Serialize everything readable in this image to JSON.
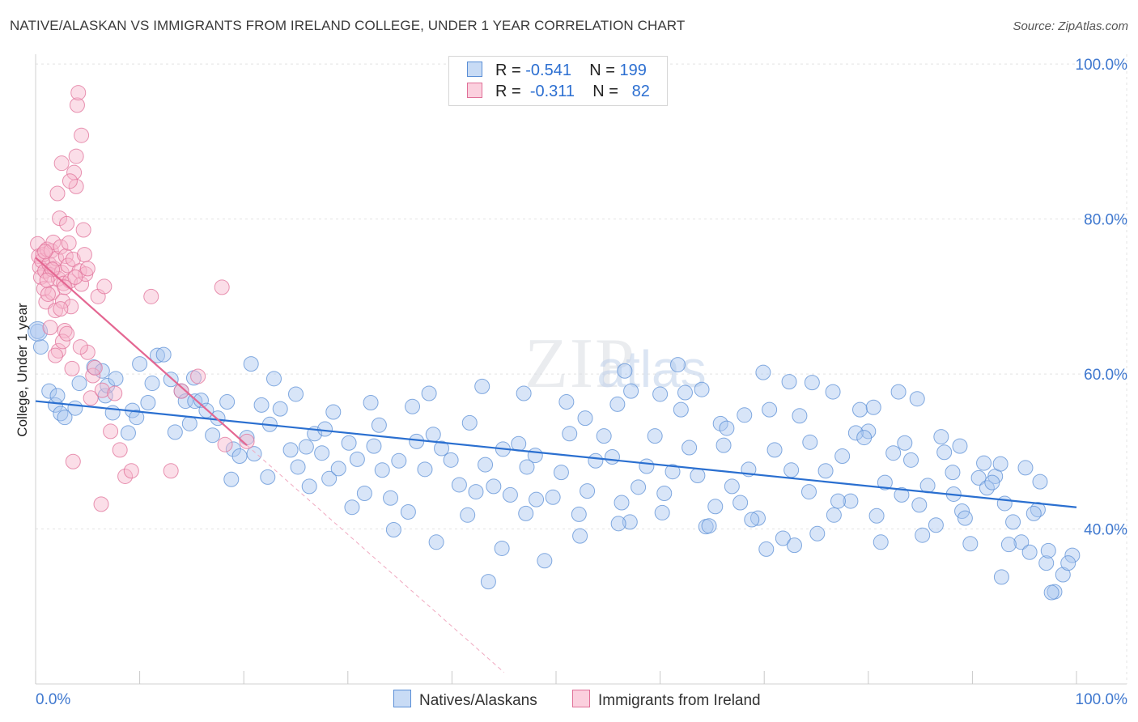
{
  "title": "NATIVE/ALASKAN VS IMMIGRANTS FROM IRELAND COLLEGE, UNDER 1 YEAR CORRELATION CHART",
  "source": "Source: ZipAtlas.com",
  "watermark": "ZIPatlas",
  "legend": {
    "rows": [
      {
        "r_label": "R =",
        "r_value": "-0.541",
        "n_label": "N =",
        "n_value": "199",
        "color": "#a9c6ef",
        "border": "#5b8fd6"
      },
      {
        "r_label": "R =",
        "r_value": "-0.311",
        "n_label": "N =",
        "n_value": "82",
        "color": "#f7b6cb",
        "border": "#e07098"
      }
    ]
  },
  "bottom_legend": [
    {
      "label": "Natives/Alaskans",
      "color": "#a9c6ef",
      "border": "#5b8fd6"
    },
    {
      "label": "Immigrants from Ireland",
      "color": "#f7b6cb",
      "border": "#e07098"
    }
  ],
  "chart_data": {
    "type": "scatter",
    "title": "NATIVE/ALASKAN VS IMMIGRANTS FROM IRELAND COLLEGE, UNDER 1 YEAR CORRELATION CHART",
    "xlabel": "",
    "ylabel": "College, Under 1 year",
    "xlim": [
      0,
      100
    ],
    "ylim": [
      20,
      102
    ],
    "x_tick_labels": [
      "0.0%",
      "100.0%"
    ],
    "y_ticks": [
      40,
      60,
      80,
      100
    ],
    "y_tick_labels": [
      "40.0%",
      "60.0%",
      "80.0%",
      "100.0%"
    ],
    "grid": true,
    "series": [
      {
        "name": "Natives/Alaskans",
        "color": "#a9c6ef",
        "border": "#5b8fd6",
        "trend": {
          "x0": 0,
          "y0": 56.5,
          "x1": 100,
          "y1": 42.8,
          "color": "#2a6fd0"
        },
        "points": [
          [
            0.2,
            65.5
          ],
          [
            0.5,
            63.5
          ],
          [
            1.3,
            57.8
          ],
          [
            1.9,
            56.0
          ],
          [
            2.4,
            54.9
          ],
          [
            2.8,
            54.4
          ],
          [
            3.8,
            55.6
          ],
          [
            4.2,
            58.8
          ],
          [
            5.6,
            60.9
          ],
          [
            6.4,
            60.4
          ],
          [
            6.7,
            57.2
          ],
          [
            6.9,
            58.5
          ],
          [
            7.4,
            55.0
          ],
          [
            7.7,
            59.4
          ],
          [
            8.9,
            52.4
          ],
          [
            9.3,
            55.3
          ],
          [
            9.7,
            54.4
          ],
          [
            10.8,
            56.3
          ],
          [
            11.2,
            58.8
          ],
          [
            11.7,
            62.4
          ],
          [
            12.3,
            62.5
          ],
          [
            13.0,
            59.3
          ],
          [
            13.4,
            52.5
          ],
          [
            14.0,
            57.8
          ],
          [
            14.4,
            56.5
          ],
          [
            14.8,
            53.6
          ],
          [
            15.3,
            56.5
          ],
          [
            15.9,
            56.6
          ],
          [
            16.4,
            55.3
          ],
          [
            17.0,
            52.1
          ],
          [
            17.5,
            54.3
          ],
          [
            18.4,
            56.4
          ],
          [
            19.0,
            50.3
          ],
          [
            19.6,
            49.4
          ],
          [
            20.3,
            51.8
          ],
          [
            21.0,
            49.7
          ],
          [
            21.7,
            56.0
          ],
          [
            22.5,
            53.5
          ],
          [
            23.5,
            55.5
          ],
          [
            24.5,
            50.2
          ],
          [
            25.2,
            48.0
          ],
          [
            26.0,
            50.6
          ],
          [
            26.8,
            52.3
          ],
          [
            27.5,
            49.8
          ],
          [
            28.2,
            46.5
          ],
          [
            29.1,
            47.8
          ],
          [
            30.1,
            51.1
          ],
          [
            30.9,
            49.0
          ],
          [
            31.6,
            44.6
          ],
          [
            32.5,
            50.7
          ],
          [
            33.3,
            47.6
          ],
          [
            34.1,
            44.0
          ],
          [
            34.9,
            48.8
          ],
          [
            35.8,
            42.2
          ],
          [
            36.6,
            51.3
          ],
          [
            37.4,
            47.7
          ],
          [
            38.2,
            52.2
          ],
          [
            39.0,
            50.4
          ],
          [
            39.9,
            48.9
          ],
          [
            40.7,
            45.7
          ],
          [
            41.5,
            41.8
          ],
          [
            42.3,
            44.8
          ],
          [
            43.2,
            48.3
          ],
          [
            44.0,
            45.5
          ],
          [
            44.8,
            37.5
          ],
          [
            45.6,
            44.4
          ],
          [
            46.4,
            51.0
          ],
          [
            47.2,
            48.0
          ],
          [
            48.1,
            43.8
          ],
          [
            48.9,
            35.9
          ],
          [
            49.7,
            44.1
          ],
          [
            50.5,
            47.3
          ],
          [
            51.3,
            52.3
          ],
          [
            52.2,
            41.9
          ],
          [
            53.0,
            44.9
          ],
          [
            53.8,
            48.8
          ],
          [
            54.6,
            52.0
          ],
          [
            55.4,
            49.3
          ],
          [
            56.3,
            43.4
          ],
          [
            57.1,
            40.9
          ],
          [
            57.9,
            45.4
          ],
          [
            58.7,
            48.1
          ],
          [
            59.5,
            52.0
          ],
          [
            60.4,
            44.6
          ],
          [
            61.2,
            47.4
          ],
          [
            62.0,
            55.4
          ],
          [
            62.8,
            50.5
          ],
          [
            63.6,
            46.9
          ],
          [
            64.4,
            40.3
          ],
          [
            65.3,
            42.9
          ],
          [
            66.1,
            50.8
          ],
          [
            66.9,
            45.5
          ],
          [
            67.7,
            43.4
          ],
          [
            68.5,
            47.7
          ],
          [
            69.4,
            41.4
          ],
          [
            70.2,
            37.4
          ],
          [
            71.0,
            50.2
          ],
          [
            71.8,
            38.8
          ],
          [
            72.6,
            47.6
          ],
          [
            73.4,
            54.6
          ],
          [
            74.3,
            44.8
          ],
          [
            75.1,
            39.4
          ],
          [
            75.9,
            47.5
          ],
          [
            76.7,
            41.8
          ],
          [
            77.5,
            49.4
          ],
          [
            78.3,
            43.6
          ],
          [
            79.2,
            55.4
          ],
          [
            80.0,
            52.6
          ],
          [
            80.8,
            41.7
          ],
          [
            81.6,
            46.0
          ],
          [
            82.4,
            49.8
          ],
          [
            83.2,
            44.4
          ],
          [
            84.1,
            48.9
          ],
          [
            84.9,
            43.1
          ],
          [
            85.7,
            45.6
          ],
          [
            86.5,
            40.5
          ],
          [
            87.3,
            49.9
          ],
          [
            88.2,
            44.5
          ],
          [
            89.0,
            42.3
          ],
          [
            89.8,
            38.1
          ],
          [
            90.6,
            46.6
          ],
          [
            91.4,
            45.3
          ],
          [
            92.2,
            46.8
          ],
          [
            93.1,
            43.3
          ],
          [
            93.9,
            40.9
          ],
          [
            94.7,
            38.3
          ],
          [
            95.5,
            37.0
          ],
          [
            96.3,
            42.5
          ],
          [
            97.1,
            35.6
          ],
          [
            97.9,
            31.9
          ],
          [
            98.7,
            34.1
          ],
          [
            99.6,
            36.6
          ],
          [
            2.1,
            57.2
          ],
          [
            10.0,
            61.3
          ],
          [
            15.2,
            59.5
          ],
          [
            20.7,
            61.3
          ],
          [
            25.0,
            57.4
          ],
          [
            28.6,
            55.1
          ],
          [
            33.0,
            53.4
          ],
          [
            36.2,
            55.8
          ],
          [
            41.7,
            53.7
          ],
          [
            44.9,
            50.3
          ],
          [
            48.0,
            49.5
          ],
          [
            52.8,
            54.3
          ],
          [
            55.9,
            56.1
          ],
          [
            60.0,
            57.4
          ],
          [
            64.0,
            58.0
          ],
          [
            68.1,
            54.7
          ],
          [
            72.4,
            59.0
          ],
          [
            76.6,
            57.7
          ],
          [
            80.5,
            55.7
          ],
          [
            84.7,
            56.8
          ],
          [
            88.8,
            50.7
          ],
          [
            92.7,
            48.4
          ],
          [
            96.5,
            46.1
          ],
          [
            22.9,
            59.4
          ],
          [
            27.8,
            52.9
          ],
          [
            32.2,
            56.3
          ],
          [
            37.8,
            57.5
          ],
          [
            42.9,
            58.4
          ],
          [
            46.9,
            57.5
          ],
          [
            51.0,
            56.4
          ],
          [
            56.6,
            60.4
          ],
          [
            61.7,
            61.2
          ],
          [
            65.8,
            53.6
          ],
          [
            69.9,
            60.2
          ],
          [
            74.6,
            58.9
          ],
          [
            78.8,
            52.4
          ],
          [
            82.9,
            57.7
          ],
          [
            87.0,
            51.9
          ],
          [
            91.1,
            48.5
          ],
          [
            95.1,
            47.9
          ],
          [
            57.2,
            57.8
          ],
          [
            62.4,
            57.6
          ],
          [
            66.4,
            53.0
          ],
          [
            70.5,
            55.4
          ],
          [
            74.4,
            51.2
          ],
          [
            79.6,
            51.8
          ],
          [
            83.5,
            51.1
          ],
          [
            88.1,
            47.3
          ],
          [
            91.9,
            46.0
          ],
          [
            95.9,
            42.0
          ],
          [
            18.8,
            46.4
          ],
          [
            22.3,
            46.7
          ],
          [
            26.3,
            45.5
          ],
          [
            30.4,
            42.8
          ],
          [
            34.4,
            39.9
          ],
          [
            38.5,
            38.3
          ],
          [
            43.5,
            33.2
          ],
          [
            47.1,
            42.0
          ],
          [
            52.3,
            39.1
          ],
          [
            56.0,
            40.7
          ],
          [
            60.2,
            42.1
          ],
          [
            64.7,
            40.4
          ],
          [
            68.8,
            41.2
          ],
          [
            72.9,
            37.9
          ],
          [
            77.1,
            43.6
          ],
          [
            81.2,
            38.3
          ],
          [
            85.2,
            39.2
          ],
          [
            89.3,
            41.4
          ],
          [
            93.5,
            38.0
          ],
          [
            97.3,
            37.2
          ],
          [
            92.8,
            33.8
          ],
          [
            97.6,
            31.8
          ],
          [
            99.2,
            35.6
          ]
        ]
      },
      {
        "name": "Immigrants from Ireland",
        "color": "#f7b6cb",
        "border": "#e07098",
        "trend": {
          "x0": 0,
          "y0": 75.0,
          "x1": 20.3,
          "y1": 50.8,
          "color": "#e46792",
          "dash_x1": 45.0,
          "dash_y1": 21.5
        },
        "points": [
          [
            0.2,
            76.8
          ],
          [
            0.3,
            75.2
          ],
          [
            0.4,
            73.8
          ],
          [
            0.5,
            72.5
          ],
          [
            0.6,
            74.6
          ],
          [
            0.7,
            75.4
          ],
          [
            0.8,
            71.0
          ],
          [
            0.9,
            73.3
          ],
          [
            1.0,
            69.3
          ],
          [
            1.1,
            76.1
          ],
          [
            1.3,
            74.2
          ],
          [
            1.4,
            72.8
          ],
          [
            1.5,
            75.9
          ],
          [
            1.6,
            70.5
          ],
          [
            1.7,
            77.0
          ],
          [
            1.8,
            73.6
          ],
          [
            1.9,
            68.2
          ],
          [
            2.0,
            74.9
          ],
          [
            2.2,
            72.3
          ],
          [
            2.3,
            80.1
          ],
          [
            2.4,
            76.4
          ],
          [
            2.5,
            73.1
          ],
          [
            2.6,
            69.4
          ],
          [
            2.7,
            71.7
          ],
          [
            2.8,
            65.6
          ],
          [
            2.9,
            75.2
          ],
          [
            3.0,
            79.4
          ],
          [
            3.1,
            74.0
          ],
          [
            3.2,
            76.9
          ],
          [
            3.3,
            72.0
          ],
          [
            3.4,
            68.7
          ],
          [
            3.6,
            74.8
          ],
          [
            3.7,
            86.0
          ],
          [
            3.9,
            84.2
          ],
          [
            4.0,
            94.7
          ],
          [
            4.1,
            96.3
          ],
          [
            4.2,
            73.3
          ],
          [
            4.4,
            71.6
          ],
          [
            4.6,
            78.6
          ],
          [
            4.8,
            72.9
          ],
          [
            5.0,
            62.8
          ],
          [
            5.3,
            56.9
          ],
          [
            5.5,
            59.8
          ],
          [
            5.7,
            60.8
          ],
          [
            6.0,
            70.0
          ],
          [
            6.4,
            57.9
          ],
          [
            7.2,
            52.6
          ],
          [
            7.6,
            57.5
          ],
          [
            8.1,
            50.2
          ],
          [
            8.6,
            46.8
          ],
          [
            9.2,
            47.5
          ],
          [
            11.1,
            70.0
          ],
          [
            13.0,
            47.5
          ],
          [
            14.0,
            57.8
          ],
          [
            15.6,
            59.7
          ],
          [
            18.2,
            50.9
          ],
          [
            20.3,
            51.3
          ],
          [
            17.9,
            71.2
          ],
          [
            2.1,
            83.3
          ],
          [
            2.5,
            87.2
          ],
          [
            3.3,
            84.9
          ],
          [
            3.9,
            88.1
          ],
          [
            4.4,
            90.8
          ],
          [
            1.6,
            73.5
          ],
          [
            2.2,
            63.0
          ],
          [
            2.6,
            64.2
          ],
          [
            3.0,
            65.2
          ],
          [
            3.5,
            60.7
          ],
          [
            1.9,
            62.4
          ],
          [
            4.3,
            63.5
          ],
          [
            1.2,
            70.3
          ],
          [
            2.8,
            71.2
          ],
          [
            6.6,
            71.3
          ],
          [
            3.8,
            72.5
          ],
          [
            0.9,
            75.8
          ],
          [
            1.1,
            72.1
          ],
          [
            2.4,
            68.4
          ],
          [
            4.7,
            75.4
          ],
          [
            1.4,
            66.0
          ],
          [
            3.6,
            48.7
          ],
          [
            6.3,
            43.2
          ],
          [
            5.0,
            73.6
          ]
        ]
      }
    ]
  }
}
